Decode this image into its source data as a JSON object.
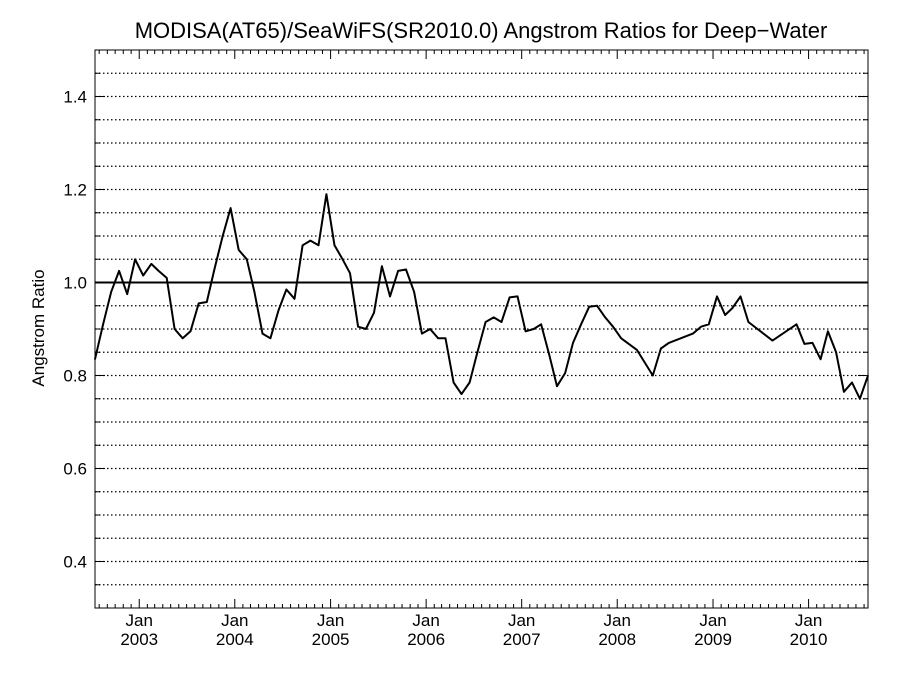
{
  "chart_data": {
    "type": "line",
    "title": "MODISA(AT65)/SeaWiFS(SR2010.0)  Angstrom Ratios for Deep−Water",
    "xlabel": "",
    "ylabel": "Angstrom Ratio",
    "xlim": [
      "2002-07-16",
      "2010-08-16"
    ],
    "ylim": [
      0.3,
      1.5
    ],
    "yticks": [
      0.4,
      0.6,
      0.8,
      1.0,
      1.2,
      1.4
    ],
    "ytick_labels": [
      "0.4",
      "0.6",
      "0.8",
      "1.0",
      "1.2",
      "1.4"
    ],
    "xticks": [
      {
        "date": "2003-01-01",
        "label_top": "Jan",
        "label_bottom": "2003"
      },
      {
        "date": "2004-01-01",
        "label_top": "Jan",
        "label_bottom": "2004"
      },
      {
        "date": "2005-01-01",
        "label_top": "Jan",
        "label_bottom": "2005"
      },
      {
        "date": "2006-01-01",
        "label_top": "Jan",
        "label_bottom": "2006"
      },
      {
        "date": "2007-01-01",
        "label_top": "Jan",
        "label_bottom": "2007"
      },
      {
        "date": "2008-01-01",
        "label_top": "Jan",
        "label_bottom": "2008"
      },
      {
        "date": "2009-01-01",
        "label_top": "Jan",
        "label_bottom": "2009"
      },
      {
        "date": "2010-01-01",
        "label_top": "Jan",
        "label_bottom": "2010"
      }
    ],
    "grid": "horizontal dotted every 0.05",
    "reference_line": 1.0,
    "series": [
      {
        "x": [
          "2002-07-16",
          "2002-08-16",
          "2002-09-16",
          "2002-10-16",
          "2002-11-16",
          "2002-12-16",
          "2003-01-16",
          "2003-02-16",
          "2003-03-16",
          "2003-04-16",
          "2003-05-16",
          "2003-06-16",
          "2003-07-16",
          "2003-08-16",
          "2003-09-16",
          "2003-10-16",
          "2003-11-16",
          "2003-12-16",
          "2004-01-16",
          "2004-02-16",
          "2004-03-16",
          "2004-04-16",
          "2004-05-16",
          "2004-06-16",
          "2004-07-16",
          "2004-08-16",
          "2004-09-16",
          "2004-10-16",
          "2004-11-16",
          "2004-12-16",
          "2005-01-16",
          "2005-02-16",
          "2005-03-16",
          "2005-04-16",
          "2005-05-16",
          "2005-06-16",
          "2005-07-16",
          "2005-08-16",
          "2005-09-16",
          "2005-10-16",
          "2005-11-16",
          "2005-12-16",
          "2006-01-16",
          "2006-02-16",
          "2006-03-16",
          "2006-04-16",
          "2006-05-16",
          "2006-06-16",
          "2006-07-16",
          "2006-08-16",
          "2006-09-16",
          "2006-10-16",
          "2006-11-16",
          "2006-12-16",
          "2007-01-16",
          "2007-02-16",
          "2007-03-16",
          "2007-04-16",
          "2007-05-16",
          "2007-06-16",
          "2007-07-16",
          "2007-08-16",
          "2007-09-16",
          "2007-10-16",
          "2007-11-16",
          "2007-12-16",
          "2008-01-16",
          "2008-03-16",
          "2008-05-16",
          "2008-06-16",
          "2008-07-16",
          "2008-10-16",
          "2008-11-16",
          "2008-12-16",
          "2009-01-16",
          "2009-02-16",
          "2009-03-16",
          "2009-04-16",
          "2009-05-16",
          "2009-08-16",
          "2009-11-16",
          "2009-12-16",
          "2010-01-16",
          "2010-02-16",
          "2010-03-16",
          "2010-04-16",
          "2010-05-16",
          "2010-06-16",
          "2010-07-16",
          "2010-08-16"
        ],
        "values": [
          0.835,
          0.91,
          0.98,
          1.025,
          0.975,
          1.05,
          1.015,
          1.04,
          1.025,
          1.01,
          0.9,
          0.88,
          0.895,
          0.955,
          0.958,
          1.03,
          1.1,
          1.16,
          1.07,
          1.05,
          0.98,
          0.89,
          0.88,
          0.94,
          0.985,
          0.965,
          1.08,
          1.09,
          1.08,
          1.19,
          1.08,
          1.05,
          1.02,
          0.905,
          0.9,
          0.935,
          1.035,
          0.97,
          1.025,
          1.028,
          0.98,
          0.89,
          0.9,
          0.88,
          0.88,
          0.785,
          0.76,
          0.785,
          0.85,
          0.915,
          0.925,
          0.915,
          0.968,
          0.97,
          0.895,
          0.9,
          0.91,
          0.845,
          0.777,
          0.805,
          0.87,
          0.91,
          0.948,
          0.95,
          0.925,
          0.905,
          0.88,
          0.855,
          0.8,
          0.858,
          0.87,
          0.89,
          0.905,
          0.91,
          0.97,
          0.93,
          0.945,
          0.97,
          0.915,
          0.875,
          0.91,
          0.868,
          0.87,
          0.835,
          0.895,
          0.85,
          0.765,
          0.785,
          0.75,
          0.8
        ]
      }
    ]
  }
}
